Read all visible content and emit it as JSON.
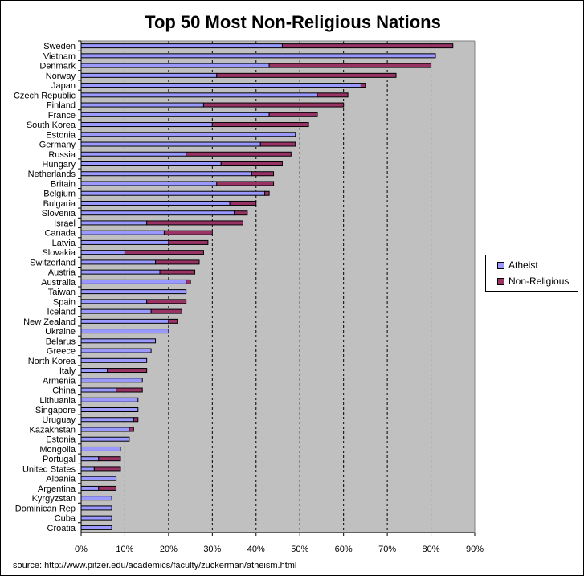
{
  "chart_data": {
    "type": "bar",
    "orientation": "horizontal",
    "stacked": true,
    "title": "Top 50 Most Non-Religious Nations",
    "categories": [
      "Sweden",
      "Vietnam",
      "Denmark",
      "Norway",
      "Japan",
      "Czech Republic",
      "Finland",
      "France",
      "South Korea",
      "Estonia",
      "Germany",
      "Russia",
      "Hungary",
      "Netherlands",
      "Britain",
      "Belgium",
      "Bulgaria",
      "Slovenia",
      "Israel",
      "Canada",
      "Latvia",
      "Slovakia",
      "Switzerland",
      "Austria",
      "Australia",
      "Taiwan",
      "Spain",
      "Iceland",
      "New Zealand",
      "Ukraine",
      "Belarus",
      "Greece",
      "North Korea",
      "Italy",
      "Armenia",
      "China",
      "Lithuania",
      "Singapore",
      "Uruguay",
      "Kazakhstan",
      "Estonia",
      "Mongolia",
      "Portugal",
      "United States",
      "Albania",
      "Argentina",
      "Kyrgyzstan",
      "Dominican Rep",
      "Cuba",
      "Croatia"
    ],
    "series": [
      {
        "name": "Atheist",
        "color": "#9999FF",
        "values": [
          46,
          81,
          43,
          31,
          64,
          54,
          28,
          43,
          30,
          49,
          41,
          24,
          32,
          39,
          31,
          42,
          34,
          35,
          15,
          19,
          20,
          10,
          17,
          18,
          24,
          24,
          15,
          16,
          20,
          20,
          17,
          16,
          15,
          6,
          14,
          8,
          13,
          13,
          12,
          11,
          11,
          9,
          4,
          3,
          8,
          4,
          7,
          7,
          7,
          7
        ]
      },
      {
        "name": "Non-Religious",
        "color": "#993366",
        "values": [
          39,
          0,
          37,
          41,
          1,
          7,
          32,
          11,
          22,
          0,
          8,
          24,
          14,
          5,
          13,
          1,
          6,
          3,
          22,
          11,
          9,
          18,
          10,
          8,
          1,
          0,
          9,
          7,
          2,
          0,
          0,
          0,
          0,
          9,
          0,
          6,
          0,
          0,
          1,
          1,
          0,
          0,
          5,
          6,
          0,
          4,
          0,
          0,
          0,
          0
        ]
      }
    ],
    "xlim": [
      0,
      90
    ],
    "xticks": [
      "0%",
      "10%",
      "20%",
      "30%",
      "40%",
      "50%",
      "60%",
      "70%",
      "80%",
      "90%"
    ],
    "grid": "vertical dashed",
    "legend": "right",
    "plot_background": "#C0C0C0"
  },
  "source": "source: http://www.pitzer.edu/academics/faculty/zuckerman/atheism.html"
}
